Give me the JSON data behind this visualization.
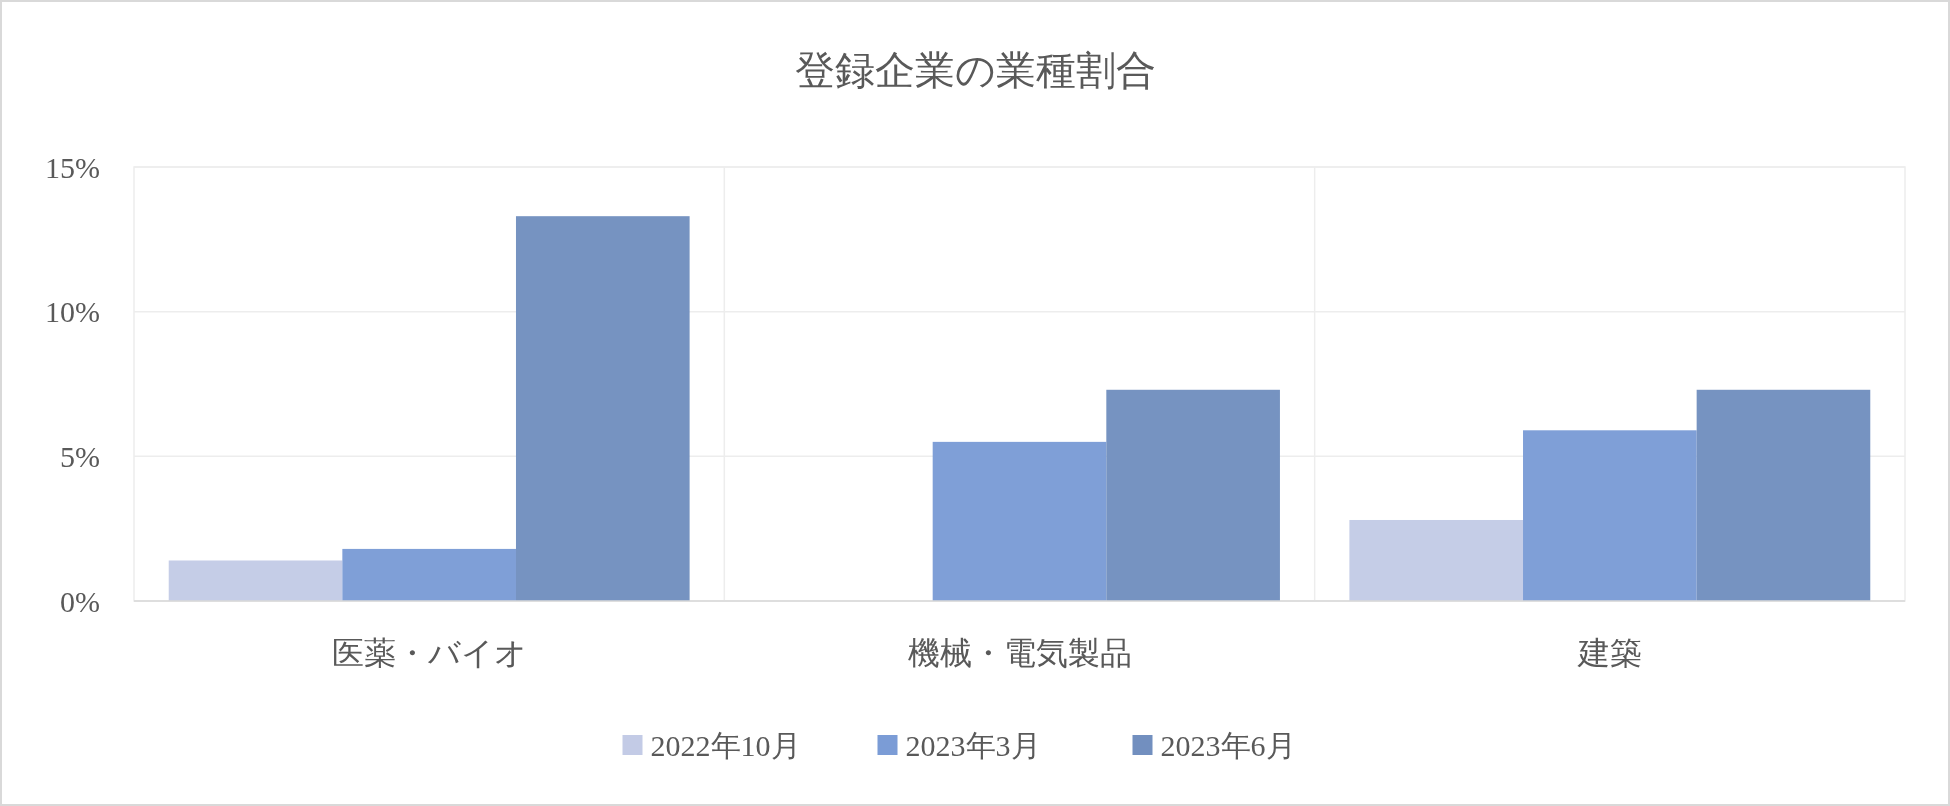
{
  "chart_data": {
    "type": "bar",
    "title": "登録企業の業種割合",
    "categories": [
      "医薬・バイオ",
      "機械・電気製品",
      "建築"
    ],
    "series": [
      {
        "name": "2022年10月",
        "color": "#c3cbe6",
        "values": [
          1.4,
          0,
          2.8
        ]
      },
      {
        "name": "2023年3月",
        "color": "#7b9cd6",
        "values": [
          1.8,
          5.5,
          5.9
        ]
      },
      {
        "name": "2023年6月",
        "color": "#728fbf",
        "values": [
          13.3,
          7.3,
          7.3
        ]
      }
    ],
    "ylim": [
      0,
      15
    ],
    "yticks": [
      {
        "value": 0,
        "label": "0%"
      },
      {
        "value": 5,
        "label": "5%"
      },
      {
        "value": 10,
        "label": "10%"
      },
      {
        "value": 15,
        "label": "15%"
      }
    ],
    "grid": true,
    "legend": "bottom"
  }
}
